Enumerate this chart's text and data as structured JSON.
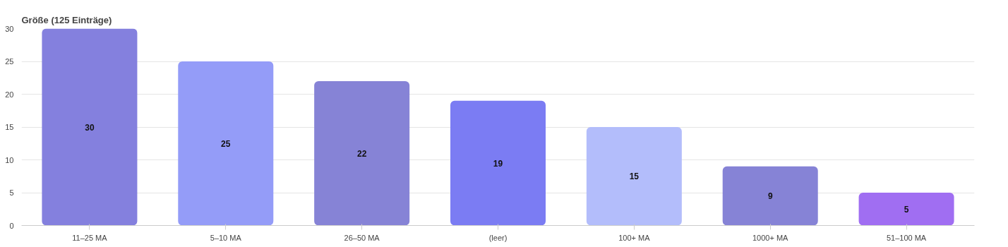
{
  "chart_data": {
    "type": "bar",
    "title": "Größe (125 Einträge)",
    "categories": [
      "11–25 MA",
      "5–10 MA",
      "26–50 MA",
      "(leer)",
      "100+ MA",
      "1000+ MA",
      "51–100 MA"
    ],
    "values": [
      30,
      25,
      22,
      19,
      15,
      9,
      5
    ],
    "colors": [
      "#8480de",
      "#949cf8",
      "#8683d6",
      "#7b7cf3",
      "#b3bdfb",
      "#8683d6",
      "#a06ef2"
    ],
    "ylim": [
      0,
      30
    ],
    "yticks": [
      0,
      5,
      10,
      15,
      20,
      25,
      30
    ],
    "grid": "y",
    "data_labels": true
  }
}
